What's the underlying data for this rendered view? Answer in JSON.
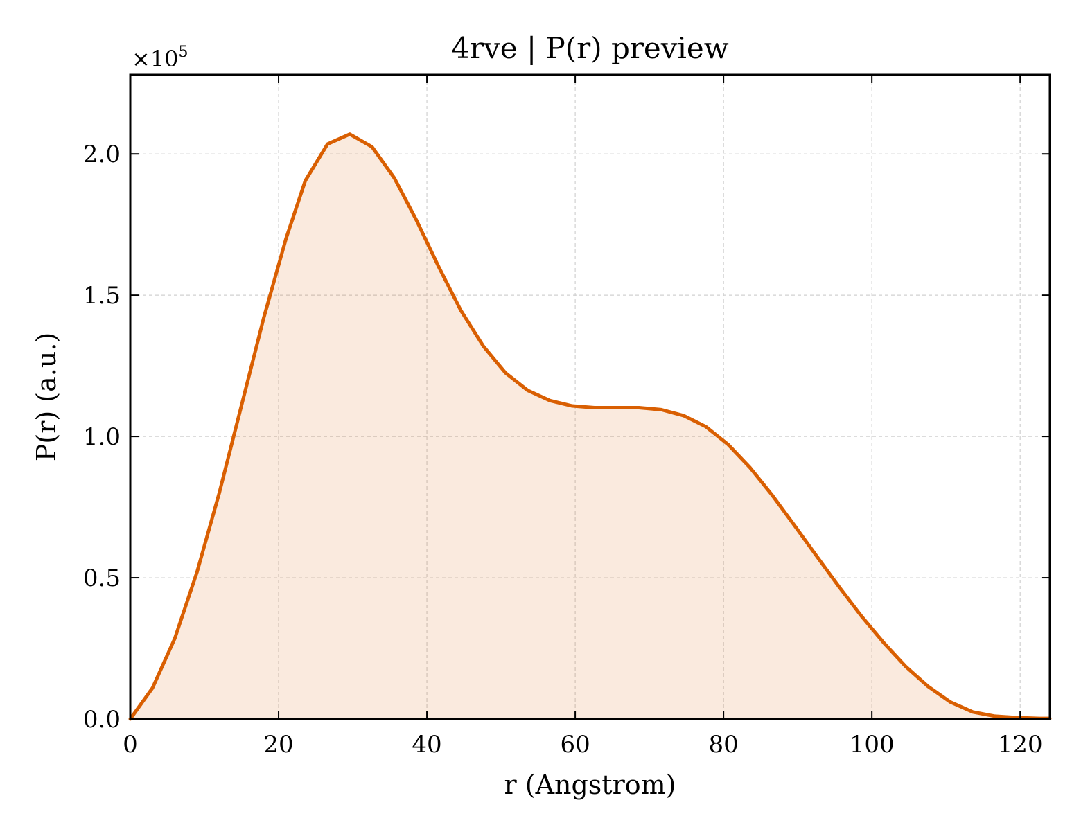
{
  "chart_data": {
    "type": "area",
    "title": "4rve | P(r) preview",
    "xlabel": "r (Angstrom)",
    "ylabel": "P(r) (a.u.)",
    "y_offset_label": {
      "base": "×10",
      "exponent": "5"
    },
    "xlim": [
      0,
      124
    ],
    "ylim": [
      0,
      2.28
    ],
    "y_scale_factor": 100000,
    "grid": true,
    "legend": "none",
    "x_ticks": [
      {
        "value": 0,
        "label": "0"
      },
      {
        "value": 20,
        "label": "20"
      },
      {
        "value": 40,
        "label": "40"
      },
      {
        "value": 60,
        "label": "60"
      },
      {
        "value": 80,
        "label": "80"
      },
      {
        "value": 100,
        "label": "100"
      },
      {
        "value": 120,
        "label": "120"
      }
    ],
    "y_ticks": [
      {
        "value": 0.0,
        "label": "0.0"
      },
      {
        "value": 0.5,
        "label": "0.5"
      },
      {
        "value": 1.0,
        "label": "1.0"
      },
      {
        "value": 1.5,
        "label": "1.5"
      },
      {
        "value": 2.0,
        "label": "2.0"
      }
    ],
    "series": [
      {
        "color": "#d95f02",
        "fill_color": "#d95f02",
        "fill_opacity": 0.13,
        "x": [
          0,
          3,
          6,
          9,
          12,
          15,
          18,
          21,
          23.6,
          26.6,
          29.6,
          32.6,
          35.6,
          38.6,
          41.6,
          44.6,
          47.6,
          50.6,
          53.6,
          56.6,
          59.6,
          62.6,
          65.6,
          68.6,
          71.6,
          74.6,
          77.6,
          80.6,
          83.6,
          86.6,
          89.6,
          92.6,
          95.6,
          98.6,
          101.6,
          104.6,
          107.6,
          110.6,
          113.6,
          116.6,
          119.6,
          122.6,
          124
        ],
        "y": [
          0.0,
          0.11,
          0.285,
          0.52,
          0.8,
          1.11,
          1.42,
          1.7,
          1.905,
          2.035,
          2.07,
          2.025,
          1.915,
          1.765,
          1.6,
          1.445,
          1.32,
          1.225,
          1.163,
          1.127,
          1.108,
          1.102,
          1.102,
          1.102,
          1.095,
          1.074,
          1.035,
          0.972,
          0.889,
          0.791,
          0.684,
          0.575,
          0.467,
          0.364,
          0.27,
          0.185,
          0.115,
          0.06,
          0.025,
          0.01,
          0.005,
          0.002,
          0.002
        ]
      }
    ]
  }
}
